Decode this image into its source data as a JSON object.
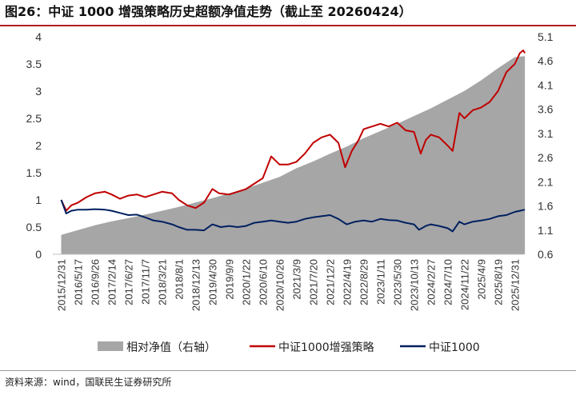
{
  "title": "图26：中证 1000 增强策略历史超额净值走势（截止至 20260424）",
  "source": "资料来源：wind，国联民生证券研究所",
  "colors": {
    "excess_area": "#a6a6a6",
    "enhanced_line": "#c00000",
    "index_line": "#002060",
    "title_rule": "#b01e23"
  },
  "chart_data": {
    "type": "line",
    "title": "",
    "xlabel": "",
    "ylabel": "",
    "ylabel_right": "",
    "ylim_left": [
      0,
      4
    ],
    "yticks_left": [
      "0",
      "0.5",
      "1",
      "1.5",
      "2",
      "2.5",
      "3",
      "3.5",
      "4"
    ],
    "ylim_right": [
      0.6,
      5.1
    ],
    "yticks_right": [
      "0.6",
      "1.1",
      "1.6",
      "2.1",
      "2.6",
      "3.1",
      "3.6",
      "4.1",
      "4.6",
      "5.1"
    ],
    "x_tick_labels": [
      "2015/12/31",
      "2016/5/17",
      "2016/9/26",
      "2017/2/14",
      "2017/6/27",
      "2017/11/7",
      "2018/3/21",
      "2018/8/1",
      "2018/12/13",
      "2019/4/30",
      "2019/9/9",
      "2020/1/22",
      "2020/6/10",
      "2020/10/26",
      "2021/3/9",
      "2021/7/20",
      "2021/12/2",
      "2022/4/19",
      "2022/8/29",
      "2023/1/11",
      "2023/5/30",
      "2023/10/13",
      "2024/2/27",
      "2024/7/10",
      "2024/11/22",
      "2025/4/9",
      "2025/8/19",
      "2025/12/31"
    ],
    "grid": false,
    "legend_position": "bottom",
    "series": [
      {
        "name": "相对净值（右轴）",
        "axis": "right",
        "style": "area",
        "points": [
          [
            0,
            1.0
          ],
          [
            1,
            1.1
          ],
          [
            2,
            1.2
          ],
          [
            3,
            1.28
          ],
          [
            4,
            1.35
          ],
          [
            5,
            1.42
          ],
          [
            6,
            1.5
          ],
          [
            7,
            1.58
          ],
          [
            8,
            1.67
          ],
          [
            9,
            1.76
          ],
          [
            10,
            1.86
          ],
          [
            11,
            1.96
          ],
          [
            12,
            2.08
          ],
          [
            13,
            2.2
          ],
          [
            14,
            2.38
          ],
          [
            15,
            2.52
          ],
          [
            16,
            2.68
          ],
          [
            17,
            2.83
          ],
          [
            18,
            3.0
          ],
          [
            19,
            3.15
          ],
          [
            20,
            3.3
          ],
          [
            21,
            3.46
          ],
          [
            22,
            3.62
          ],
          [
            23,
            3.8
          ],
          [
            24,
            3.98
          ],
          [
            25,
            4.2
          ],
          [
            26,
            4.45
          ],
          [
            27,
            4.68
          ],
          [
            27.6,
            4.7
          ]
        ]
      },
      {
        "name": "中证1000增强策略",
        "axis": "left",
        "style": "line",
        "points": [
          [
            0,
            1.0
          ],
          [
            0.3,
            0.8
          ],
          [
            0.6,
            0.9
          ],
          [
            1,
            0.95
          ],
          [
            1.5,
            1.05
          ],
          [
            2,
            1.12
          ],
          [
            2.6,
            1.15
          ],
          [
            3,
            1.1
          ],
          [
            3.5,
            1.02
          ],
          [
            4,
            1.08
          ],
          [
            4.5,
            1.1
          ],
          [
            5,
            1.05
          ],
          [
            5.5,
            1.1
          ],
          [
            6,
            1.15
          ],
          [
            6.6,
            1.12
          ],
          [
            7,
            1.0
          ],
          [
            7.5,
            0.9
          ],
          [
            8,
            0.85
          ],
          [
            8.5,
            0.95
          ],
          [
            9,
            1.2
          ],
          [
            9.4,
            1.12
          ],
          [
            10,
            1.1
          ],
          [
            10.5,
            1.15
          ],
          [
            11,
            1.2
          ],
          [
            11.5,
            1.3
          ],
          [
            12,
            1.4
          ],
          [
            12.5,
            1.8
          ],
          [
            13,
            1.65
          ],
          [
            13.5,
            1.65
          ],
          [
            14,
            1.7
          ],
          [
            14.5,
            1.85
          ],
          [
            15,
            2.05
          ],
          [
            15.5,
            2.15
          ],
          [
            16,
            2.2
          ],
          [
            16.5,
            2.05
          ],
          [
            16.9,
            1.6
          ],
          [
            17.3,
            1.9
          ],
          [
            17.7,
            2.1
          ],
          [
            18,
            2.3
          ],
          [
            18.5,
            2.35
          ],
          [
            19,
            2.4
          ],
          [
            19.5,
            2.35
          ],
          [
            20,
            2.42
          ],
          [
            20.5,
            2.28
          ],
          [
            21,
            2.25
          ],
          [
            21.4,
            1.85
          ],
          [
            21.7,
            2.1
          ],
          [
            22,
            2.2
          ],
          [
            22.5,
            2.15
          ],
          [
            23,
            2.0
          ],
          [
            23.3,
            1.9
          ],
          [
            23.7,
            2.6
          ],
          [
            24,
            2.5
          ],
          [
            24.5,
            2.65
          ],
          [
            25,
            2.7
          ],
          [
            25.5,
            2.8
          ],
          [
            26,
            3.0
          ],
          [
            26.5,
            3.35
          ],
          [
            27,
            3.5
          ],
          [
            27.3,
            3.7
          ],
          [
            27.5,
            3.75
          ],
          [
            27.6,
            3.7
          ]
        ]
      },
      {
        "name": "中证1000",
        "axis": "left",
        "style": "line",
        "points": [
          [
            0,
            1.0
          ],
          [
            0.3,
            0.75
          ],
          [
            0.6,
            0.8
          ],
          [
            1,
            0.82
          ],
          [
            1.5,
            0.82
          ],
          [
            2,
            0.83
          ],
          [
            2.6,
            0.82
          ],
          [
            3,
            0.8
          ],
          [
            3.5,
            0.76
          ],
          [
            4,
            0.72
          ],
          [
            4.5,
            0.73
          ],
          [
            5,
            0.68
          ],
          [
            5.5,
            0.62
          ],
          [
            6,
            0.6
          ],
          [
            6.6,
            0.55
          ],
          [
            7,
            0.5
          ],
          [
            7.5,
            0.45
          ],
          [
            8,
            0.45
          ],
          [
            8.5,
            0.44
          ],
          [
            9,
            0.55
          ],
          [
            9.5,
            0.5
          ],
          [
            10,
            0.52
          ],
          [
            10.5,
            0.5
          ],
          [
            11,
            0.52
          ],
          [
            11.5,
            0.58
          ],
          [
            12,
            0.6
          ],
          [
            12.5,
            0.62
          ],
          [
            13,
            0.6
          ],
          [
            13.5,
            0.58
          ],
          [
            14,
            0.6
          ],
          [
            14.5,
            0.65
          ],
          [
            15,
            0.68
          ],
          [
            15.5,
            0.7
          ],
          [
            16,
            0.72
          ],
          [
            16.5,
            0.65
          ],
          [
            17,
            0.55
          ],
          [
            17.5,
            0.6
          ],
          [
            18,
            0.62
          ],
          [
            18.5,
            0.6
          ],
          [
            19,
            0.65
          ],
          [
            19.5,
            0.63
          ],
          [
            20,
            0.62
          ],
          [
            20.5,
            0.58
          ],
          [
            21,
            0.55
          ],
          [
            21.3,
            0.45
          ],
          [
            21.7,
            0.52
          ],
          [
            22,
            0.55
          ],
          [
            22.5,
            0.52
          ],
          [
            23,
            0.48
          ],
          [
            23.3,
            0.42
          ],
          [
            23.7,
            0.6
          ],
          [
            24,
            0.55
          ],
          [
            24.5,
            0.6
          ],
          [
            25,
            0.62
          ],
          [
            25.5,
            0.65
          ],
          [
            26,
            0.7
          ],
          [
            26.5,
            0.72
          ],
          [
            27,
            0.78
          ],
          [
            27.3,
            0.8
          ],
          [
            27.6,
            0.82
          ]
        ]
      }
    ]
  }
}
